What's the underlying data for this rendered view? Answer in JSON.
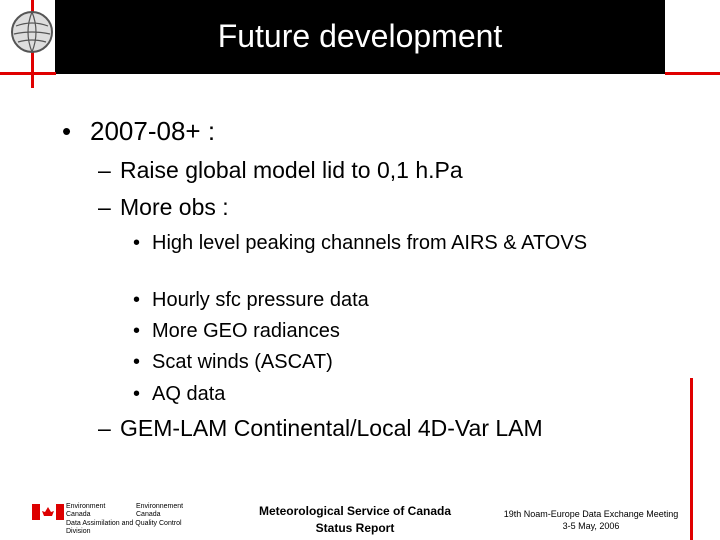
{
  "header": {
    "title": "Future development"
  },
  "body": {
    "items": [
      {
        "marker": "•",
        "text": "2007-08+ :"
      },
      {
        "marker": "–",
        "text": "Raise global model lid to 0,1 h.Pa"
      },
      {
        "marker": "–",
        "text": "More obs :"
      },
      {
        "marker": "•",
        "text": "High level peaking channels from AIRS & ATOVS"
      },
      {
        "marker": "•",
        "text": "Hourly sfc pressure data"
      },
      {
        "marker": "•",
        "text": "More GEO radiances"
      },
      {
        "marker": "•",
        "text": "Scat winds (ASCAT)"
      },
      {
        "marker": "•",
        "text": "AQ data"
      },
      {
        "marker": "–",
        "text": "GEM-LAM Continental/Local 4D-Var LAM"
      }
    ]
  },
  "footer": {
    "logo": {
      "english": "Environment Canada",
      "french": "Environnement Canada",
      "division": "Data Assimilation and Quality Control Division"
    },
    "center": [
      "Meteorological Service of Canada",
      "Status Report"
    ],
    "right": [
      "19th Noam-Europe Data Exchange Meeting",
      "3-5 May, 2006"
    ]
  }
}
